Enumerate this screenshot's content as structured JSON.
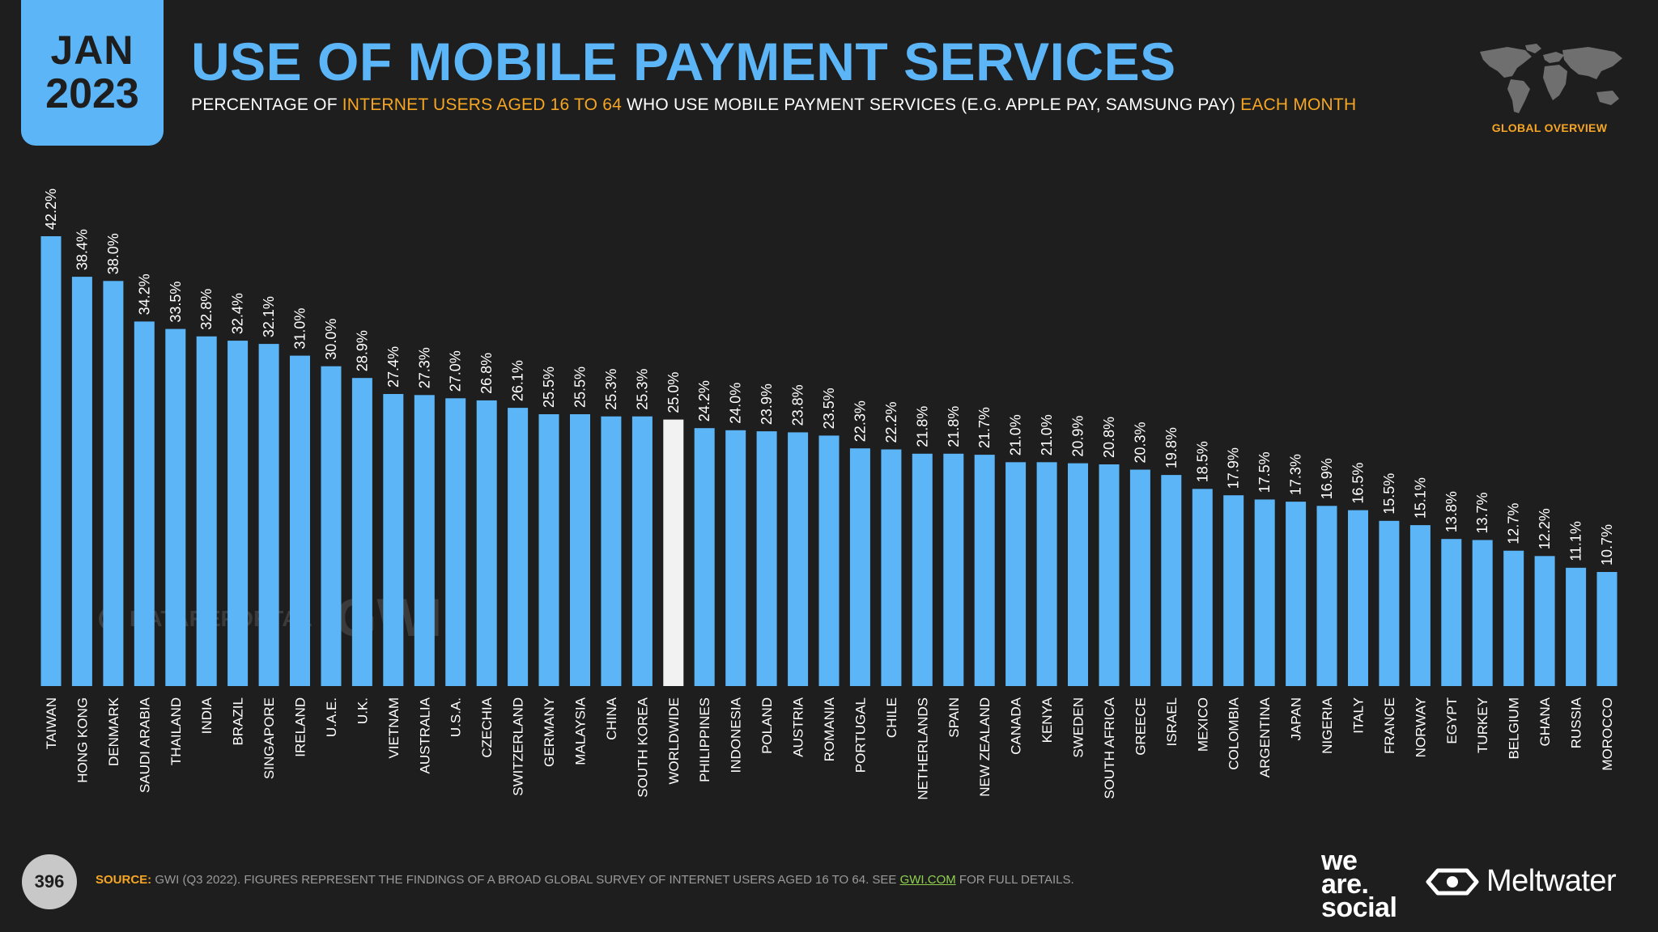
{
  "header": {
    "month": "JAN",
    "year": "2023",
    "title": "USE OF MOBILE PAYMENT SERVICES",
    "subtitle_part1": "PERCENTAGE OF ",
    "subtitle_highlight1": "INTERNET USERS AGED 16 TO 64",
    "subtitle_part2": " WHO USE MOBILE PAYMENT SERVICES (E.G. APPLE PAY, SAMSUNG PAY) ",
    "subtitle_highlight2": "EACH MONTH",
    "section_label": "GLOBAL OVERVIEW"
  },
  "watermarks": {
    "datareportal": "DATAREPORTAL",
    "gwi": "GWI."
  },
  "footer": {
    "page_number": "396",
    "source_label": "SOURCE:",
    "source_text": " GWI (Q3 2022). FIGURES REPRESENT THE FINDINGS OF A BROAD GLOBAL SURVEY OF INTERNET USERS AGED 16 TO 64. SEE ",
    "source_link": "GWI.COM",
    "source_tail": " FOR FULL DETAILS.",
    "brand1_line1": "we",
    "brand1_line2": "are.",
    "brand1_line3": "social",
    "brand2": "Meltwater"
  },
  "colors": {
    "background": "#1e1e1e",
    "bar": "#5bb5f7",
    "bar_highlight": "#f2f2f2",
    "accent": "#f6a623"
  },
  "chart_data": {
    "type": "bar",
    "title": "USE OF MOBILE PAYMENT SERVICES",
    "xlabel": "",
    "ylabel": "",
    "ylim": [
      0,
      42.2
    ],
    "grid": false,
    "highlight": "WORLDWIDE",
    "categories": [
      "TAIWAN",
      "HONG KONG",
      "DENMARK",
      "SAUDI ARABIA",
      "THAILAND",
      "INDIA",
      "BRAZIL",
      "SINGAPORE",
      "IRELAND",
      "U.A.E.",
      "U.K.",
      "VIETNAM",
      "AUSTRALIA",
      "U.S.A.",
      "CZECHIA",
      "SWITZERLAND",
      "GERMANY",
      "MALAYSIA",
      "CHINA",
      "SOUTH KOREA",
      "WORLDWIDE",
      "PHILIPPINES",
      "INDONESIA",
      "POLAND",
      "AUSTRIA",
      "ROMANIA",
      "PORTUGAL",
      "CHILE",
      "NETHERLANDS",
      "SPAIN",
      "NEW ZEALAND",
      "CANADA",
      "KENYA",
      "SWEDEN",
      "SOUTH AFRICA",
      "GREECE",
      "ISRAEL",
      "MEXICO",
      "COLOMBIA",
      "ARGENTINA",
      "JAPAN",
      "NIGERIA",
      "ITALY",
      "FRANCE",
      "NORWAY",
      "EGYPT",
      "TURKEY",
      "BELGIUM",
      "GHANA",
      "RUSSIA",
      "MOROCCO"
    ],
    "values": [
      42.2,
      38.4,
      38.0,
      34.2,
      33.5,
      32.8,
      32.4,
      32.1,
      31.0,
      30.0,
      28.9,
      27.4,
      27.3,
      27.0,
      26.8,
      26.1,
      25.5,
      25.5,
      25.3,
      25.3,
      25.0,
      24.2,
      24.0,
      23.9,
      23.8,
      23.5,
      22.3,
      22.2,
      21.8,
      21.8,
      21.7,
      21.0,
      21.0,
      20.9,
      20.8,
      20.3,
      19.8,
      18.5,
      17.9,
      17.5,
      17.3,
      16.9,
      16.5,
      15.5,
      15.1,
      13.8,
      13.7,
      12.7,
      12.2,
      11.1,
      10.7
    ],
    "labels": [
      "42.2%",
      "38.4%",
      "38.0%",
      "34.2%",
      "33.5%",
      "32.8%",
      "32.4%",
      "32.1%",
      "31.0%",
      "30.0%",
      "28.9%",
      "27.4%",
      "27.3%",
      "27.0%",
      "26.8%",
      "26.1%",
      "25.5%",
      "25.5%",
      "25.3%",
      "25.3%",
      "25.0%",
      "24.2%",
      "24.0%",
      "23.9%",
      "23.8%",
      "23.5%",
      "22.3%",
      "22.2%",
      "21.8%",
      "21.8%",
      "21.7%",
      "21.0%",
      "21.0%",
      "20.9%",
      "20.8%",
      "20.3%",
      "19.8%",
      "18.5%",
      "17.9%",
      "17.5%",
      "17.3%",
      "16.9%",
      "16.5%",
      "15.5%",
      "15.1%",
      "13.8%",
      "13.7%",
      "12.7%",
      "12.2%",
      "11.1%",
      "10.7%"
    ]
  }
}
